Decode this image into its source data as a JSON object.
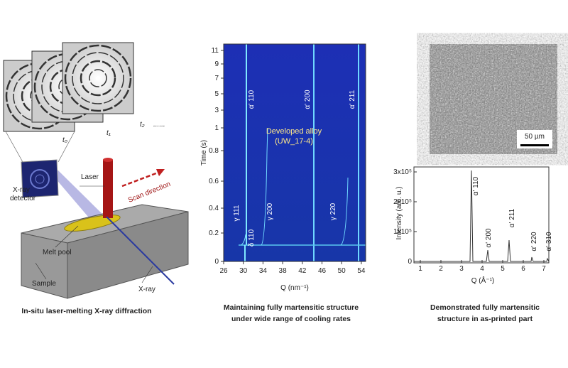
{
  "left": {
    "frames": [
      "t₀",
      "t₁",
      "t₂",
      "......"
    ],
    "detector": [
      "X-ray",
      "detector"
    ],
    "laser": "Laser",
    "scan": "Scan direction",
    "melt_pool": "Melt pool",
    "sample": "Sample",
    "xray": "X-ray",
    "caption": "In-situ laser-melting X-ray diffraction"
  },
  "middle": {
    "ylabel": "Time (s)",
    "yticks": [
      "0",
      "0.2",
      "0.4",
      "0.6",
      "0.8",
      "1",
      "3",
      "5",
      "7",
      "9",
      "11"
    ],
    "xlabel": "Q (nm⁻¹)",
    "xticks": [
      "26",
      "30",
      "34",
      "38",
      "42",
      "46",
      "50",
      "54"
    ],
    "peaks": [
      "α' 110",
      "α' 200",
      "α' 211",
      "γ 111",
      "δ 110",
      "γ 200",
      "γ 220"
    ],
    "alloy": [
      "Developed alloy",
      "(UW_17-4)"
    ],
    "caption": [
      "Maintaining fully martensitic structure",
      "under wide range of cooling rates"
    ]
  },
  "right": {
    "scale": "50 µm",
    "ylabel": "Intensity (arb. u.)",
    "yticks": [
      "0",
      "1x10⁵",
      "2x10⁵",
      "3x10⁵"
    ],
    "xlabel": "Q (Å⁻¹)",
    "xticks": [
      "1",
      "2",
      "3",
      "4",
      "5",
      "6",
      "7"
    ],
    "peaks": [
      "α' 110",
      "α' 200",
      "α' 211",
      "α' 220",
      "α' 310"
    ],
    "caption": [
      "Demonstrated fully martensitic",
      "structure in as-printed part"
    ]
  }
}
